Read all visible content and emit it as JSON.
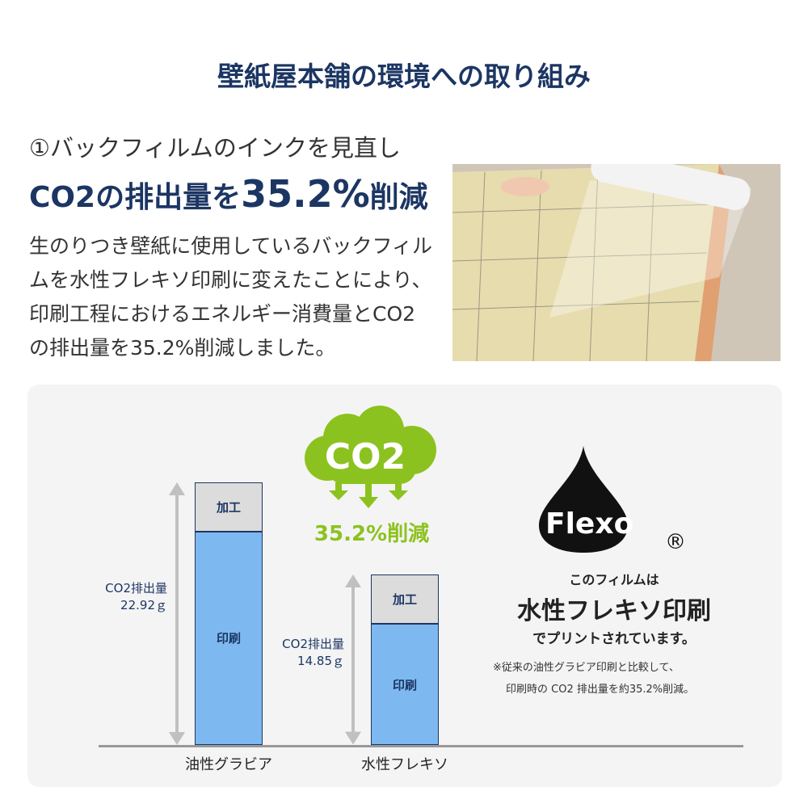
{
  "title": "壁紙屋本舗の環境への取り組み",
  "intro": {
    "subtitle": "①バックフィルムのインクを見直し",
    "headline_pre": "CO2の排出量を",
    "headline_value": "35.2%",
    "headline_post": "削減",
    "body": "生のりつき壁紙に使用しているバックフィルムを水性フレキソ印刷に変えたことにより、印刷工程におけるエネルギー消費量とCO2の排出量を35.2%削減しました。"
  },
  "cloud": {
    "label": "CO2",
    "reduction": "35.2%削減"
  },
  "flexo": {
    "logo_text": "Flexo",
    "registered": "®",
    "line1": "このフィルムは",
    "line2": "水性フレキソ印刷",
    "line3": "でプリントされています。",
    "note1": "※従来の油性グラビア印刷と比較して、",
    "note2": "印刷時の CO2 排出量を約35.2%削減。"
  },
  "colors": {
    "navy": "#1c3663",
    "green": "#8cc21f",
    "print": "#7db9f0",
    "process": "#dcdcdc"
  },
  "chart_data": {
    "type": "bar",
    "stacked": true,
    "categories": [
      "油性グラビア",
      "水性フレキソ"
    ],
    "series": [
      {
        "name": "印刷",
        "values": [
          18.62,
          10.55
        ]
      },
      {
        "name": "加工",
        "values": [
          4.3,
          4.3
        ]
      }
    ],
    "totals": [
      22.92,
      14.85
    ],
    "total_labels": [
      [
        "CO2排出量",
        "22.92ｇ"
      ],
      [
        "CO2排出量",
        "14.85ｇ"
      ]
    ],
    "ylim": [
      0,
      22.92
    ],
    "grid": false
  }
}
